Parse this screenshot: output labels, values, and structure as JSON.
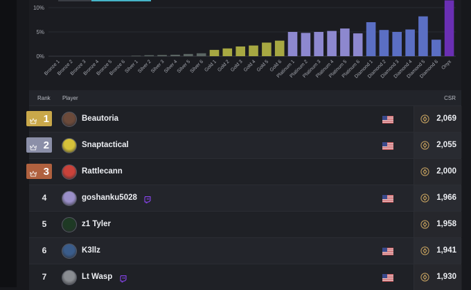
{
  "chart_data": {
    "type": "bar",
    "categories": [
      "Bronze 1",
      "Bronze 2",
      "Bronze 3",
      "Bronze 4",
      "Bronze 5",
      "Bronze 6",
      "Silver 1",
      "Silver 2",
      "Silver 3",
      "Silver 4",
      "Silver 5",
      "Silver 6",
      "Gold 1",
      "Gold 2",
      "Gold 3",
      "Gold 4",
      "Gold 5",
      "Gold 6",
      "Platinum 1",
      "Platinum 2",
      "Platinum 3",
      "Platinum 4",
      "Platinum 5",
      "Platinum 6",
      "Diamond 1",
      "Diamond 2",
      "Diamond 3",
      "Diamond 4",
      "Diamond 5",
      "Diamond 6",
      "Onyx"
    ],
    "values": [
      0.05,
      0.05,
      0.05,
      0.05,
      0.05,
      0.05,
      0.1,
      0.2,
      0.25,
      0.3,
      0.45,
      0.6,
      1.3,
      1.6,
      2.0,
      2.2,
      2.8,
      3.2,
      5.0,
      4.8,
      5.0,
      5.2,
      5.7,
      4.7,
      7.0,
      5.4,
      5.0,
      5.5,
      8.2,
      3.4,
      11.5
    ],
    "bar_colors": [
      "#3a3d44",
      "#3a3d44",
      "#3a3d44",
      "#3a3d44",
      "#3a3d44",
      "#3a3d44",
      "#5b6663",
      "#5b6663",
      "#5b6663",
      "#5b6663",
      "#5b6663",
      "#5b6663",
      "#a7a842",
      "#a7a842",
      "#a7a842",
      "#a7a842",
      "#a7a842",
      "#a7a842",
      "#8d88cf",
      "#8d88cf",
      "#8d88cf",
      "#8d88cf",
      "#8d88cf",
      "#8d88cf",
      "#5b6fc4",
      "#5b6fc4",
      "#5b6fc4",
      "#5b6fc4",
      "#5b6fc4",
      "#5b6fc4",
      "#6a2fb3"
    ],
    "yticks": [
      "0%",
      "5%",
      "10%"
    ],
    "ylim": [
      0,
      12.5
    ],
    "grid": true
  },
  "table": {
    "header": {
      "rank": "Rank",
      "player": "Player",
      "csr": "CSR"
    },
    "rows": [
      {
        "rank": "1",
        "badge_color": "#c9a84a",
        "name": "Beautoria",
        "twitch": false,
        "flag": true,
        "csr": "2,069",
        "avatar_color": "#6b4a3a"
      },
      {
        "rank": "2",
        "badge_color": "#8b8fa8",
        "name": "Snaptactical",
        "twitch": false,
        "flag": true,
        "csr": "2,055",
        "avatar_color": "#d6c23a"
      },
      {
        "rank": "3",
        "badge_color": "#b0613f",
        "name": "Rattlecann",
        "twitch": false,
        "flag": false,
        "csr": "2,000",
        "avatar_color": "#c9423a"
      },
      {
        "rank": "4",
        "badge_color": "",
        "name": "goshanku5028",
        "twitch": true,
        "flag": true,
        "csr": "1,966",
        "avatar_color": "#9a8fc8"
      },
      {
        "rank": "5",
        "badge_color": "",
        "name": "z1 Tyler",
        "twitch": false,
        "flag": false,
        "csr": "1,958",
        "avatar_color": "#1e3a24"
      },
      {
        "rank": "6",
        "badge_color": "",
        "name": "K3llz",
        "twitch": false,
        "flag": true,
        "csr": "1,941",
        "avatar_color": "#3a5c8a"
      },
      {
        "rank": "7",
        "badge_color": "",
        "name": "Lt Wasp",
        "twitch": true,
        "flag": true,
        "csr": "1,930",
        "avatar_color": "#8a8d92"
      }
    ]
  },
  "icons": {
    "crown": "crown-icon",
    "twitch": "twitch-icon",
    "flag": "us-flag-icon",
    "csr": "rank-emblem-icon"
  }
}
